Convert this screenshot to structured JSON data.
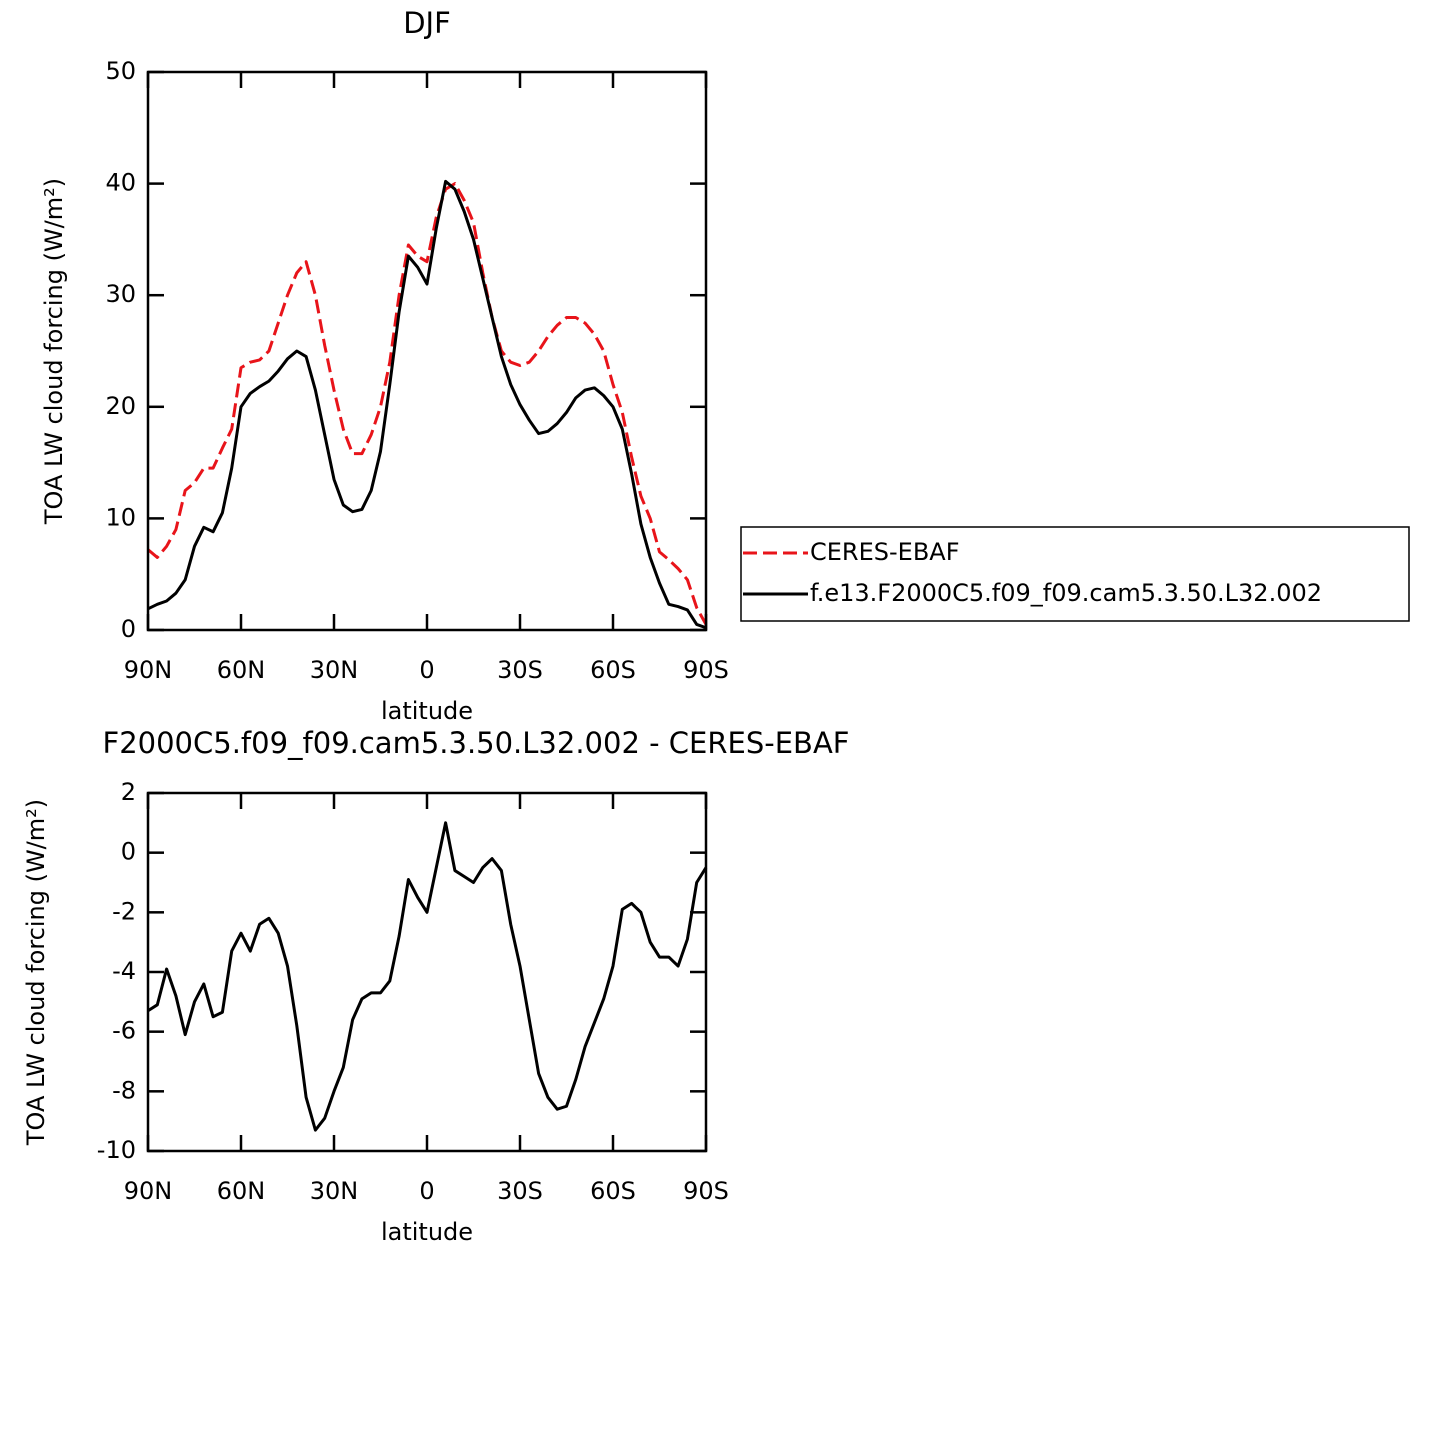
{
  "chart_data": [
    {
      "type": "line",
      "title": "DJF",
      "xlabel": "latitude",
      "ylabel": "TOA LW cloud forcing (W/m²)",
      "x": [
        90,
        87,
        84,
        81,
        78,
        75,
        72,
        69,
        66,
        63,
        60,
        57,
        54,
        51,
        48,
        45,
        42,
        39,
        36,
        33,
        30,
        27,
        24,
        21,
        18,
        15,
        12,
        9,
        6,
        3,
        0,
        -3,
        -6,
        -9,
        -12,
        -15,
        -18,
        -21,
        -24,
        -27,
        -30,
        -33,
        -36,
        -39,
        -42,
        -45,
        -48,
        -51,
        -54,
        -57,
        -60,
        -63,
        -66,
        -69,
        -72,
        -75,
        -78,
        -81,
        -84,
        -87,
        -90
      ],
      "xlim": [
        90,
        -90
      ],
      "xticks": [
        {
          "value": 90,
          "label": "90N"
        },
        {
          "value": 60,
          "label": "60N"
        },
        {
          "value": 30,
          "label": "30N"
        },
        0,
        {
          "value": -30,
          "label": "30S"
        },
        {
          "value": -60,
          "label": "60S"
        },
        {
          "value": -90,
          "label": "90S"
        }
      ],
      "ylim": [
        0,
        50
      ],
      "yticks": [
        0,
        10,
        20,
        30,
        40,
        50
      ],
      "legend": "right",
      "series": [
        {
          "name": "CERES-EBAF",
          "color": "#e8141a",
          "style": "dashed",
          "values": [
            7.2,
            6.5,
            7.5,
            9,
            12.5,
            13.2,
            14.5,
            14.5,
            16.3,
            18,
            23.5,
            24,
            24.2,
            25,
            27.5,
            30,
            32,
            33,
            30,
            25.5,
            21.5,
            18,
            15.8,
            15.8,
            17.5,
            20,
            24,
            30,
            34.5,
            33.5,
            33,
            37,
            39.5,
            40,
            38.5,
            36.5,
            32,
            28,
            25,
            24,
            23.7,
            24,
            25,
            26.3,
            27.3,
            28,
            28,
            27.5,
            26.5,
            25,
            22,
            19.5,
            15.5,
            12,
            10,
            7,
            6.3,
            5.5,
            4.5,
            2,
            0.5
          ]
        },
        {
          "name": "f.e13.F2000C5.f09_f09.cam5.3.50.L32.002",
          "color": "#000000",
          "style": "solid",
          "values": [
            1.9,
            2.3,
            2.6,
            3.3,
            4.5,
            7.5,
            9.2,
            8.8,
            10.5,
            14.5,
            20,
            21.2,
            21.8,
            22.3,
            23.2,
            24.3,
            25,
            24.5,
            21.5,
            17.5,
            13.5,
            11.2,
            10.6,
            10.8,
            12.5,
            16,
            22,
            28.5,
            33.5,
            32.5,
            31,
            36,
            40.2,
            39.5,
            37.5,
            35,
            31.5,
            28,
            24.5,
            22,
            20.2,
            18.8,
            17.6,
            17.8,
            18.5,
            19.5,
            20.8,
            21.5,
            21.7,
            21,
            20,
            18,
            14,
            9.5,
            6.5,
            4.2,
            2.3,
            2.1,
            1.8,
            0.5,
            0.2
          ]
        }
      ]
    },
    {
      "type": "line",
      "title": "F2000C5.f09_f09.cam5.3.50.L32.002 - CERES-EBAF",
      "xlabel": "latitude",
      "ylabel": "TOA LW cloud forcing (W/m²)",
      "x": [
        90,
        87,
        84,
        81,
        78,
        75,
        72,
        69,
        66,
        63,
        60,
        57,
        54,
        51,
        48,
        45,
        42,
        39,
        36,
        33,
        30,
        27,
        24,
        21,
        18,
        15,
        12,
        9,
        6,
        3,
        0,
        -3,
        -6,
        -9,
        -12,
        -15,
        -18,
        -21,
        -24,
        -27,
        -30,
        -33,
        -36,
        -39,
        -42,
        -45,
        -48,
        -51,
        -54,
        -57,
        -60,
        -63,
        -66,
        -69,
        -72,
        -75,
        -78,
        -81,
        -84,
        -87,
        -90
      ],
      "xlim": [
        90,
        -90
      ],
      "xticks": [
        {
          "value": 90,
          "label": "90N"
        },
        {
          "value": 60,
          "label": "60N"
        },
        {
          "value": 30,
          "label": "30N"
        },
        0,
        {
          "value": -30,
          "label": "30S"
        },
        {
          "value": -60,
          "label": "60S"
        },
        {
          "value": -90,
          "label": "90S"
        }
      ],
      "ylim": [
        -10,
        2
      ],
      "yticks": [
        -10,
        -8,
        -6,
        -4,
        -2,
        0,
        2
      ],
      "color": "#000000",
      "values": [
        -5.3,
        -5.1,
        -3.9,
        -4.8,
        -6.1,
        -5,
        -4.4,
        -5.5,
        -5.35,
        -3.3,
        -2.7,
        -3.3,
        -2.4,
        -2.2,
        -2.7,
        -3.8,
        -5.8,
        -8.2,
        -9.3,
        -8.9,
        -8,
        -7.2,
        -5.6,
        -4.9,
        -4.7,
        -4.7,
        -4.3,
        -2.8,
        -0.9,
        -1.5,
        -2,
        -0.5,
        1,
        -0.6,
        -0.8,
        -1,
        -0.5,
        -0.2,
        -0.6,
        -2.4,
        -3.8,
        -5.6,
        -7.4,
        -8.2,
        -8.6,
        -8.5,
        -7.6,
        -6.5,
        -5.7,
        -4.9,
        -3.8,
        -1.9,
        -1.7,
        -2,
        -3,
        -3.5,
        -3.5,
        -3.8,
        -2.9,
        -1,
        -0.5
      ]
    }
  ]
}
